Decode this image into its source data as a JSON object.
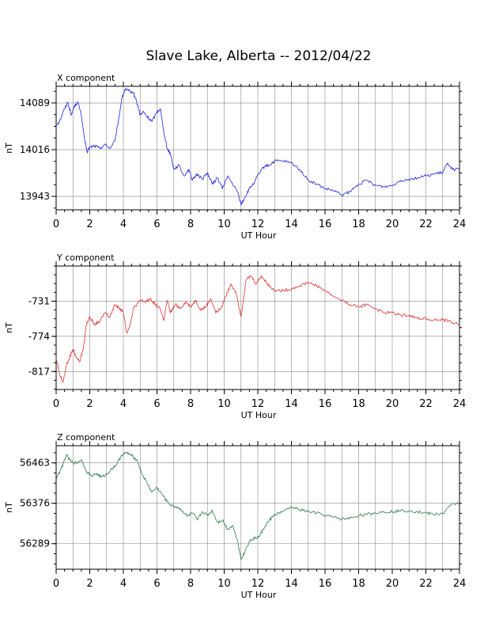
{
  "title": "Slave Lake, Alberta -- 2012/04/22",
  "chart_data": [
    {
      "type": "line",
      "panel_title": "X component",
      "xlabel": "UT Hour",
      "ylabel": "nT",
      "xlim": [
        0,
        24
      ],
      "ylim": [
        13922,
        14115
      ],
      "xticks": [
        0,
        2,
        4,
        6,
        8,
        10,
        12,
        14,
        16,
        18,
        20,
        22,
        24
      ],
      "yticks": [
        14089,
        14016,
        13943
      ],
      "color": "#2020e0",
      "series": [
        {
          "x": [
            0,
            0.2,
            0.5,
            0.7,
            0.9,
            1.1,
            1.3,
            1.5,
            1.7,
            1.85,
            2.0,
            2.3,
            2.6,
            2.9,
            3.2,
            3.5,
            3.7,
            3.9,
            4.1,
            4.3,
            4.6,
            4.8,
            5.0,
            5.2,
            5.4,
            5.7,
            6.0,
            6.2,
            6.4,
            6.6,
            6.8,
            7.0,
            7.3,
            7.6,
            7.9,
            8.1,
            8.4,
            8.7,
            9.0,
            9.3,
            9.6,
            9.9,
            10.2,
            10.5,
            10.8,
            11.0,
            11.2,
            11.5,
            11.8,
            12.1,
            12.4,
            12.7,
            13.0,
            13.5,
            14.0,
            14.5,
            15.0,
            15.5,
            16.0,
            16.5,
            17.0,
            17.5,
            18.0,
            18.5,
            19.0,
            19.5,
            20.0,
            20.5,
            21.0,
            21.5,
            22.0,
            22.5,
            23.0,
            23.3,
            23.6,
            24.0
          ],
          "values": [
            14055,
            14060,
            14080,
            14090,
            14070,
            14085,
            14090,
            14070,
            14030,
            14012,
            14020,
            14022,
            14018,
            14024,
            14018,
            14030,
            14060,
            14095,
            14110,
            14108,
            14105,
            14090,
            14070,
            14075,
            14068,
            14060,
            14075,
            14080,
            14045,
            14018,
            14010,
            13985,
            13992,
            13975,
            13985,
            13968,
            13978,
            13970,
            13980,
            13962,
            13972,
            13955,
            13975,
            13962,
            13950,
            13930,
            13940,
            13955,
            13965,
            13980,
            13990,
            13992,
            13998,
            13998,
            13995,
            13985,
            13968,
            13962,
            13955,
            13952,
            13945,
            13950,
            13962,
            13968,
            13960,
            13958,
            13960,
            13968,
            13970,
            13972,
            13975,
            13978,
            13980,
            13995,
            13985,
            13985
          ]
        }
      ]
    },
    {
      "type": "line",
      "panel_title": "Y component",
      "xlabel": "UT Hour",
      "ylabel": "nT",
      "xlim": [
        0,
        24
      ],
      "ylim": [
        -839,
        -688
      ],
      "xticks": [
        0,
        2,
        4,
        6,
        8,
        10,
        12,
        14,
        16,
        18,
        20,
        22,
        24
      ],
      "yticks": [
        -731,
        -774,
        -817
      ],
      "color": "#e03030",
      "series": [
        {
          "x": [
            0,
            0.2,
            0.4,
            0.6,
            0.8,
            1.0,
            1.2,
            1.4,
            1.6,
            1.8,
            2.0,
            2.3,
            2.6,
            2.9,
            3.2,
            3.5,
            3.8,
            4.0,
            4.2,
            4.4,
            4.6,
            4.8,
            5.0,
            5.3,
            5.6,
            5.9,
            6.2,
            6.4,
            6.6,
            6.8,
            7.1,
            7.4,
            7.7,
            8.0,
            8.3,
            8.6,
            8.9,
            9.2,
            9.5,
            9.8,
            10.1,
            10.4,
            10.7,
            11.0,
            11.3,
            11.6,
            11.9,
            12.2,
            12.5,
            12.8,
            13.1,
            13.5,
            14.0,
            14.5,
            15.0,
            15.5,
            16.0,
            16.5,
            17.0,
            17.5,
            18.0,
            18.5,
            19.0,
            19.5,
            20.0,
            20.5,
            21.0,
            21.5,
            22.0,
            22.5,
            23.0,
            23.5,
            24.0
          ],
          "values": [
            -800,
            -820,
            -830,
            -810,
            -800,
            -790,
            -800,
            -805,
            -790,
            -760,
            -750,
            -760,
            -755,
            -745,
            -750,
            -735,
            -740,
            -745,
            -770,
            -760,
            -740,
            -735,
            -730,
            -732,
            -728,
            -735,
            -740,
            -755,
            -730,
            -745,
            -735,
            -740,
            -732,
            -738,
            -730,
            -742,
            -738,
            -728,
            -745,
            -740,
            -725,
            -710,
            -720,
            -750,
            -705,
            -700,
            -710,
            -700,
            -708,
            -715,
            -718,
            -718,
            -716,
            -712,
            -708,
            -712,
            -718,
            -725,
            -730,
            -735,
            -738,
            -735,
            -740,
            -745,
            -745,
            -748,
            -748,
            -752,
            -752,
            -754,
            -754,
            -756,
            -760
          ]
        }
      ]
    },
    {
      "type": "line",
      "panel_title": "Z component",
      "xlabel": "UT Hour",
      "ylabel": "nT",
      "xlim": [
        0,
        24
      ],
      "ylim": [
        56234,
        56500
      ],
      "xticks": [
        0,
        2,
        4,
        6,
        8,
        10,
        12,
        14,
        16,
        18,
        20,
        22,
        24
      ],
      "yticks": [
        56463,
        56376,
        56289
      ],
      "color": "#2e7d4f",
      "series": [
        {
          "x": [
            0,
            0.3,
            0.6,
            0.9,
            1.2,
            1.5,
            1.8,
            2.1,
            2.4,
            2.7,
            3.0,
            3.3,
            3.6,
            3.9,
            4.2,
            4.5,
            4.8,
            5.1,
            5.4,
            5.7,
            6.0,
            6.3,
            6.6,
            6.9,
            7.2,
            7.5,
            7.8,
            8.1,
            8.4,
            8.7,
            9.0,
            9.3,
            9.6,
            9.9,
            10.2,
            10.5,
            10.8,
            11.0,
            11.2,
            11.5,
            11.8,
            12.1,
            12.4,
            12.7,
            13.0,
            13.5,
            14.0,
            14.5,
            15.0,
            15.5,
            16.0,
            16.5,
            17.0,
            17.5,
            18.0,
            18.5,
            19.0,
            19.5,
            20.0,
            20.5,
            21.0,
            21.5,
            22.0,
            22.5,
            23.0,
            23.5,
            24.0
          ],
          "values": [
            56430,
            56450,
            56480,
            56465,
            56462,
            56470,
            56445,
            56435,
            56440,
            56432,
            56438,
            56450,
            56460,
            56480,
            56485,
            56478,
            56470,
            56440,
            56420,
            56400,
            56410,
            56395,
            56380,
            56370,
            56368,
            56360,
            56348,
            56355,
            56340,
            56358,
            56350,
            56360,
            56335,
            56340,
            56320,
            56328,
            56295,
            56255,
            56270,
            56295,
            56300,
            56305,
            56325,
            56340,
            56352,
            56358,
            56368,
            56362,
            56358,
            56355,
            56350,
            56346,
            56342,
            56344,
            56350,
            56352,
            56355,
            56358,
            56358,
            56360,
            56360,
            56358,
            56355,
            56352,
            56354,
            56372,
            56378
          ]
        }
      ]
    }
  ]
}
